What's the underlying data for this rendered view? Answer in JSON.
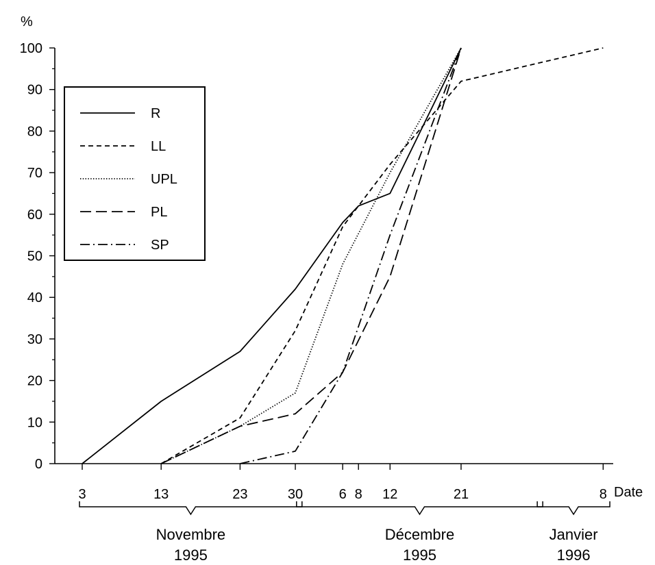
{
  "chart_data": {
    "type": "line",
    "ylabel": "%",
    "xlabel": "Date",
    "ylim": [
      0,
      100
    ],
    "y_ticks": [
      0,
      10,
      20,
      30,
      40,
      50,
      60,
      70,
      80,
      90,
      100
    ],
    "x_ticks": [
      {
        "day": 0,
        "label": "3"
      },
      {
        "day": 10,
        "label": "13"
      },
      {
        "day": 20,
        "label": "23"
      },
      {
        "day": 27,
        "label": "30"
      },
      {
        "day": 33,
        "label": "6"
      },
      {
        "day": 35,
        "label": "8"
      },
      {
        "day": 39,
        "label": "12"
      },
      {
        "day": 48,
        "label": "21"
      },
      {
        "day": 66,
        "label": "8"
      }
    ],
    "months": [
      {
        "name": "Novembre",
        "year": "1995",
        "start": 0,
        "end": 27.5
      },
      {
        "name": "Décembre",
        "year": "1995",
        "start": 27.5,
        "end": 58
      },
      {
        "name": "Janvier",
        "year": "1996",
        "start": 58,
        "end": 66.5
      }
    ],
    "legend_position": "upper-left",
    "series": [
      {
        "name": "R",
        "dash": "solid",
        "x": [
          0,
          10,
          20,
          27,
          33,
          35,
          39,
          48
        ],
        "y": [
          0,
          15,
          27,
          42,
          58,
          62,
          65,
          100
        ]
      },
      {
        "name": "LL",
        "dash": "short-dash",
        "x": [
          10,
          20,
          27,
          33,
          39,
          48,
          66
        ],
        "y": [
          0,
          11,
          32,
          57,
          72,
          92,
          100
        ]
      },
      {
        "name": "UPL",
        "dash": "dotted",
        "x": [
          10,
          20,
          27,
          33,
          39,
          48
        ],
        "y": [
          0,
          9,
          17,
          48,
          70,
          100
        ]
      },
      {
        "name": "PL",
        "dash": "long-dash",
        "x": [
          10,
          20,
          27,
          33,
          39,
          48
        ],
        "y": [
          0,
          9,
          12,
          22,
          45,
          100
        ]
      },
      {
        "name": "SP",
        "dash": "dash-dot",
        "x": [
          20,
          27,
          33,
          39,
          48
        ],
        "y": [
          0,
          3,
          22,
          55,
          100
        ]
      }
    ]
  }
}
